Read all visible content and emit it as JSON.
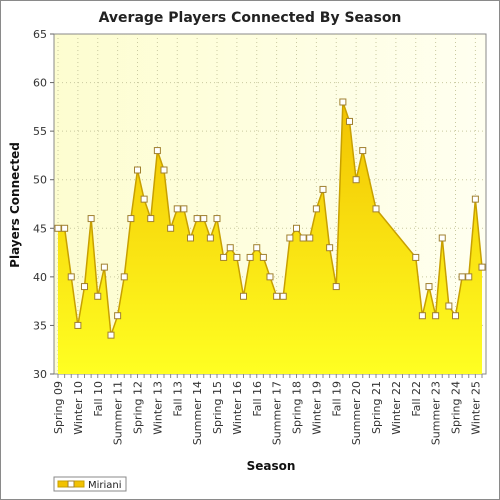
{
  "chart_data": {
    "type": "area",
    "title": "Average Players Connected By Season",
    "xlabel": "Season",
    "ylabel": "Players Connected",
    "ylim": [
      30,
      65
    ],
    "yticks": [
      30,
      35,
      40,
      45,
      50,
      55,
      60,
      65
    ],
    "grid": true,
    "legend_position": "bottom-left",
    "colors": {
      "fill_top": "#f2c200",
      "fill_bottom": "#ffff22",
      "line": "#c8a000",
      "marker_fill": "#ffffff",
      "marker_stroke": "#a08030",
      "plot_bg": "#fefee0"
    },
    "x_labels": [
      "Spring 09",
      "Winter 10",
      "Fall 10",
      "Summer 11",
      "Spring 12",
      "Winter 13",
      "Fall 13",
      "Summer 14",
      "Spring 15",
      "Winter 16",
      "Fall 16",
      "Summer 17",
      "Spring 18",
      "Winter 19",
      "Fall 19",
      "Summer 20",
      "Spring 21",
      "Winter 22",
      "Fall 22",
      "Summer 23",
      "Spring 24",
      "Winter 25"
    ],
    "x_label_index": [
      0,
      3,
      6,
      9,
      12,
      15,
      18,
      21,
      24,
      27,
      30,
      33,
      36,
      39,
      42,
      45,
      48,
      51,
      54,
      57,
      60,
      63
    ],
    "x_count": 65,
    "series": [
      {
        "name": "Miriani",
        "points": [
          [
            0,
            45
          ],
          [
            1,
            45
          ],
          [
            2,
            40
          ],
          [
            3,
            35
          ],
          [
            4,
            39
          ],
          [
            5,
            46
          ],
          [
            6,
            38
          ],
          [
            7,
            41
          ],
          [
            8,
            34
          ],
          [
            9,
            36
          ],
          [
            10,
            40
          ],
          [
            11,
            46
          ],
          [
            12,
            51
          ],
          [
            13,
            48
          ],
          [
            14,
            46
          ],
          [
            15,
            53
          ],
          [
            16,
            51
          ],
          [
            17,
            45
          ],
          [
            18,
            47
          ],
          [
            19,
            47
          ],
          [
            20,
            44
          ],
          [
            21,
            46
          ],
          [
            22,
            46
          ],
          [
            23,
            44
          ],
          [
            24,
            46
          ],
          [
            25,
            42
          ],
          [
            26,
            43
          ],
          [
            27,
            42
          ],
          [
            28,
            38
          ],
          [
            29,
            42
          ],
          [
            30,
            43
          ],
          [
            31,
            42
          ],
          [
            32,
            40
          ],
          [
            33,
            38
          ],
          [
            34,
            38
          ],
          [
            35,
            44
          ],
          [
            36,
            45
          ],
          [
            37,
            44
          ],
          [
            38,
            44
          ],
          [
            39,
            47
          ],
          [
            40,
            49
          ],
          [
            41,
            43
          ],
          [
            42,
            39
          ],
          [
            43,
            58
          ],
          [
            44,
            56
          ],
          [
            45,
            50
          ],
          [
            46,
            53
          ],
          [
            48,
            47
          ],
          [
            54,
            42
          ],
          [
            55,
            36
          ],
          [
            56,
            39
          ],
          [
            57,
            36
          ],
          [
            58,
            44
          ],
          [
            59,
            37
          ],
          [
            60,
            36
          ],
          [
            61,
            40
          ],
          [
            62,
            40
          ],
          [
            63,
            48
          ],
          [
            64,
            41
          ]
        ]
      }
    ]
  }
}
